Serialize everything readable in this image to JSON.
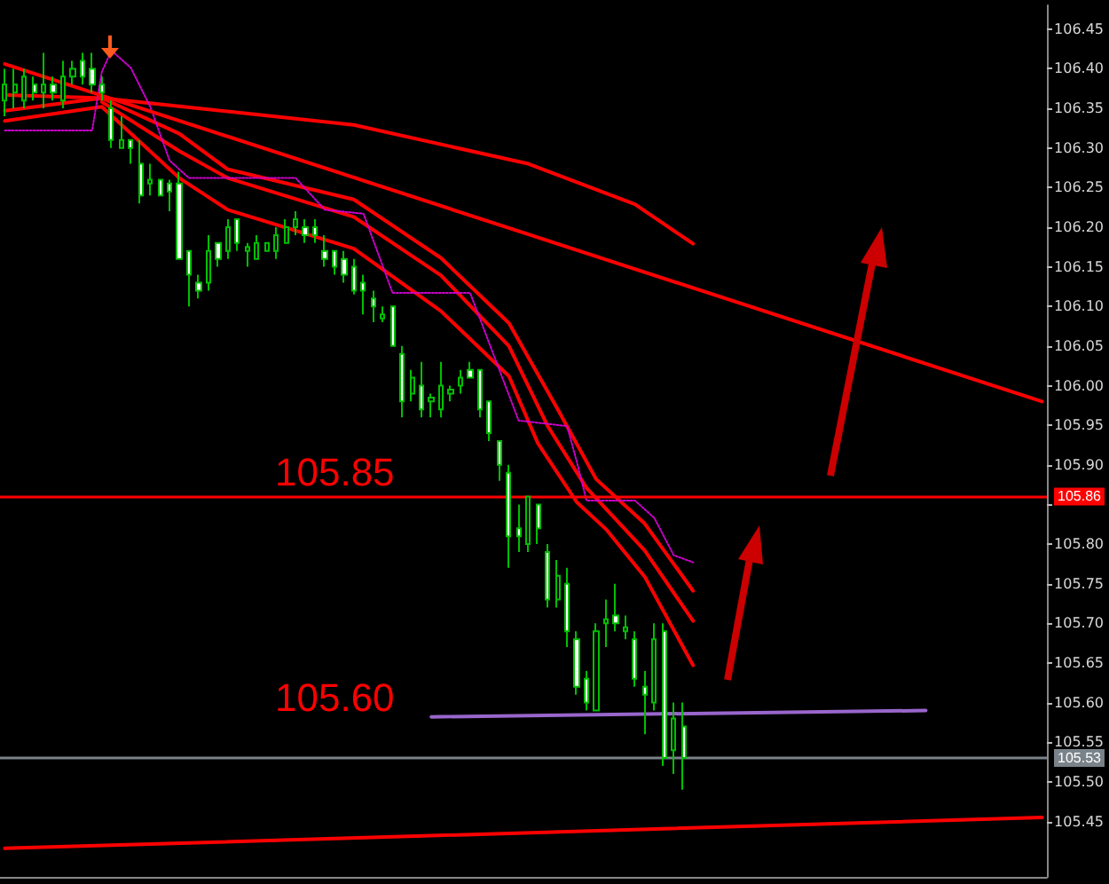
{
  "chart_data": {
    "type": "candlestick",
    "categories": [
      null,
      null,
      null,
      null,
      null,
      null,
      null,
      null,
      null,
      null,
      null,
      null,
      null,
      null,
      null,
      null,
      null,
      null,
      null,
      null,
      null,
      null,
      null,
      null,
      null,
      null,
      null,
      null,
      null,
      null,
      null,
      null,
      null,
      null,
      null,
      null,
      null,
      null,
      null,
      null,
      null,
      null,
      null,
      null,
      null,
      null,
      null,
      null,
      null,
      null,
      null,
      null,
      null,
      null,
      null,
      null,
      null,
      null,
      null,
      null,
      null,
      null,
      null,
      null,
      null,
      null,
      null,
      null,
      null,
      null,
      null,
      null,
      null,
      null,
      null,
      null,
      null,
      null,
      null,
      null,
      null,
      null,
      null,
      null,
      null,
      null,
      null,
      null,
      null,
      null,
      null,
      null,
      null,
      null,
      null,
      null,
      null,
      null,
      null,
      null,
      null,
      null,
      null,
      null,
      null,
      null,
      null,
      null
    ],
    "series": [
      {
        "color": "#00c000",
        "ohlc": [
          [
            106.36,
            106.4,
            106.34,
            106.38
          ],
          [
            106.37,
            106.4,
            106.35,
            106.38
          ],
          [
            106.36,
            106.4,
            106.35,
            106.39
          ],
          [
            106.38,
            106.39,
            106.36,
            106.37
          ],
          [
            106.37,
            106.42,
            106.35,
            106.38
          ],
          [
            106.38,
            106.39,
            106.36,
            106.37
          ],
          [
            106.36,
            106.41,
            106.35,
            106.39
          ],
          [
            106.39,
            106.41,
            106.38,
            106.4
          ],
          [
            106.41,
            106.42,
            106.38,
            106.39
          ],
          [
            106.4,
            106.42,
            106.37,
            106.38
          ],
          [
            106.38,
            106.39,
            106.36,
            106.37
          ],
          [
            106.35,
            106.36,
            106.3,
            106.31
          ],
          [
            106.3,
            106.34,
            106.3,
            106.31
          ],
          [
            106.31,
            106.31,
            106.28,
            106.3
          ],
          [
            106.28,
            106.31,
            106.23,
            106.24
          ],
          [
            106.255,
            106.28,
            106.24,
            106.26
          ],
          [
            106.26,
            106.26,
            106.24,
            106.24
          ],
          [
            106.255,
            106.26,
            106.22,
            106.245
          ],
          [
            106.255,
            106.27,
            106.16,
            106.16
          ],
          [
            106.17,
            106.17,
            106.1,
            106.14
          ],
          [
            106.13,
            106.14,
            106.11,
            106.12
          ],
          [
            106.13,
            106.19,
            106.12,
            106.17
          ],
          [
            106.18,
            106.18,
            106.15,
            106.16
          ],
          [
            106.17,
            106.21,
            106.16,
            106.2
          ],
          [
            106.21,
            106.21,
            106.17,
            106.18
          ],
          [
            106.17,
            106.18,
            106.15,
            106.175
          ],
          [
            106.16,
            106.19,
            106.16,
            106.18
          ],
          [
            106.17,
            106.18,
            106.17,
            106.18
          ],
          [
            106.17,
            106.2,
            106.16,
            106.19
          ],
          [
            106.18,
            106.21,
            106.18,
            106.2
          ],
          [
            106.2,
            106.22,
            106.19,
            106.21
          ],
          [
            106.2,
            106.21,
            106.18,
            106.19
          ],
          [
            106.2,
            106.21,
            106.18,
            106.19
          ],
          [
            106.17,
            106.19,
            106.15,
            106.16
          ],
          [
            106.17,
            106.17,
            106.14,
            106.15
          ],
          [
            106.16,
            106.17,
            106.13,
            106.14
          ],
          [
            106.15,
            106.16,
            106.115,
            106.12
          ],
          [
            106.13,
            106.14,
            106.09,
            106.12
          ],
          [
            106.11,
            106.12,
            106.08,
            106.1
          ],
          [
            106.085,
            106.1,
            106.08,
            106.09
          ],
          [
            106.1,
            106.1,
            106.05,
            106.05
          ],
          [
            106.04,
            106.05,
            105.96,
            105.98
          ],
          [
            105.99,
            106.02,
            105.98,
            106.01
          ],
          [
            106.0,
            106.03,
            105.96,
            105.97
          ],
          [
            105.98,
            105.99,
            105.96,
            105.985
          ],
          [
            105.97,
            106.03,
            105.96,
            106.0
          ],
          [
            105.99,
            106.0,
            105.98,
            105.995
          ],
          [
            106.0,
            106.02,
            105.99,
            106.01
          ],
          [
            106.02,
            106.03,
            106.01,
            106.01
          ],
          [
            106.02,
            106.02,
            105.96,
            105.97
          ],
          [
            105.98,
            105.98,
            105.93,
            105.94
          ],
          [
            105.93,
            105.93,
            105.88,
            105.9
          ],
          [
            105.89,
            105.9,
            105.77,
            105.81
          ],
          [
            105.82,
            105.85,
            105.79,
            105.81
          ],
          [
            105.8,
            105.86,
            105.79,
            105.86
          ],
          [
            105.85,
            105.85,
            105.8,
            105.82
          ],
          [
            105.79,
            105.8,
            105.72,
            105.73
          ],
          [
            105.73,
            105.78,
            105.72,
            105.76
          ],
          [
            105.75,
            105.77,
            105.67,
            105.69
          ],
          [
            105.68,
            105.69,
            105.61,
            105.62
          ],
          [
            105.63,
            105.64,
            105.59,
            105.6
          ],
          [
            105.59,
            105.7,
            105.59,
            105.69
          ],
          [
            105.7,
            105.73,
            105.67,
            105.705
          ],
          [
            105.71,
            105.75,
            105.69,
            105.7
          ],
          [
            105.69,
            105.71,
            105.68,
            105.695
          ],
          [
            105.68,
            105.69,
            105.62,
            105.63
          ],
          [
            105.62,
            105.64,
            105.56,
            105.61
          ],
          [
            105.6,
            105.7,
            105.59,
            105.68
          ],
          [
            105.69,
            105.7,
            105.52,
            105.53
          ],
          [
            105.54,
            105.6,
            105.51,
            105.58
          ],
          [
            105.57,
            105.6,
            105.49,
            105.53
          ],
          null,
          null,
          null,
          null,
          null,
          null,
          null,
          null,
          null,
          null,
          null,
          null,
          null,
          null,
          null,
          null,
          null,
          null,
          null,
          null,
          null,
          null,
          null,
          null,
          null,
          null,
          null,
          null,
          null,
          null,
          null,
          null,
          null,
          null,
          null,
          null,
          null
        ]
      },
      {
        "type": "line",
        "color": "#ff0000",
        "line_style": "solid",
        "values": [
          106.367,
          null,
          null,
          null,
          null,
          null,
          null,
          null,
          null,
          null,
          106.363,
          null,
          null,
          null,
          null,
          null,
          null,
          null,
          null,
          null,
          null,
          null,
          null,
          null,
          null,
          null,
          null,
          null,
          null,
          null,
          null,
          null,
          null,
          null,
          null,
          null,
          106.329,
          null,
          null,
          null,
          null,
          null,
          null,
          null,
          null,
          null,
          null,
          null,
          null,
          null,
          null,
          null,
          null,
          null,
          106.28,
          null,
          null,
          null,
          null,
          null,
          null,
          null,
          null,
          null,
          null,
          106.229,
          null,
          null,
          null,
          null,
          null,
          106.179,
          null,
          null,
          null,
          null,
          null,
          null,
          null,
          null,
          null,
          null,
          null,
          null,
          null,
          null,
          null,
          null,
          null,
          null,
          null,
          null,
          null,
          null,
          null,
          null,
          null,
          null,
          null,
          null,
          null,
          null,
          null,
          null,
          null,
          null,
          null,
          null
        ]
      },
      {
        "type": "line",
        "color": "#ff0000",
        "line_style": "solid",
        "values": [
          106.347,
          null,
          null,
          null,
          null,
          null,
          null,
          null,
          null,
          null,
          106.363,
          null,
          null,
          null,
          null,
          null,
          null,
          null,
          106.318,
          null,
          null,
          null,
          null,
          106.273,
          null,
          null,
          null,
          null,
          null,
          null,
          null,
          null,
          null,
          null,
          null,
          null,
          106.235,
          null,
          null,
          null,
          null,
          null,
          null,
          null,
          null,
          106.161,
          null,
          null,
          null,
          null,
          null,
          null,
          106.079,
          null,
          null,
          null,
          null,
          105.971,
          null,
          null,
          null,
          105.882,
          null,
          null,
          null,
          null,
          105.826,
          null,
          null,
          null,
          null,
          105.741,
          null,
          null,
          null,
          null,
          null,
          null,
          null,
          null,
          null,
          null,
          null,
          null,
          null,
          null,
          null,
          null,
          null,
          null,
          null,
          null,
          null,
          null,
          null,
          null,
          null,
          null,
          null,
          null,
          null,
          null,
          null,
          null,
          null,
          null,
          null,
          null
        ]
      },
      {
        "type": "line",
        "color": "#ff0000",
        "line_style": "solid",
        "values": [
          null,
          null,
          null,
          null,
          null,
          null,
          null,
          null,
          null,
          null,
          106.358,
          null,
          null,
          null,
          null,
          null,
          null,
          null,
          106.296,
          null,
          null,
          null,
          null,
          106.262,
          null,
          null,
          null,
          null,
          null,
          null,
          null,
          null,
          null,
          null,
          null,
          null,
          106.213,
          null,
          null,
          null,
          null,
          null,
          null,
          null,
          null,
          106.139,
          null,
          null,
          null,
          null,
          null,
          null,
          106.05,
          null,
          null,
          null,
          105.949,
          null,
          null,
          null,
          105.871,
          null,
          null,
          null,
          null,
          null,
          105.792,
          null,
          null,
          null,
          null,
          105.703,
          null,
          null,
          null,
          null,
          null,
          null,
          null,
          null,
          null,
          null,
          null,
          null,
          null,
          null,
          null,
          null,
          null,
          null,
          null,
          null,
          null,
          null,
          null,
          null,
          null,
          null,
          null,
          null,
          null,
          null,
          null,
          null,
          null,
          null,
          null,
          null
        ]
      },
      {
        "type": "line",
        "color": "#ff0000",
        "line_style": "solid",
        "values": [
          106.334,
          null,
          null,
          null,
          null,
          null,
          null,
          null,
          null,
          null,
          106.352,
          null,
          null,
          null,
          null,
          null,
          null,
          null,
          106.262,
          null,
          null,
          null,
          null,
          106.222,
          null,
          null,
          null,
          null,
          null,
          null,
          null,
          null,
          null,
          null,
          null,
          null,
          106.173,
          null,
          null,
          null,
          null,
          null,
          null,
          null,
          null,
          106.094,
          null,
          null,
          null,
          null,
          null,
          null,
          106.012,
          null,
          null,
          105.927,
          null,
          null,
          null,
          105.853,
          null,
          null,
          105.819,
          null,
          null,
          null,
          105.759,
          null,
          null,
          null,
          null,
          105.647,
          null,
          null,
          null,
          null,
          null,
          null,
          null,
          null,
          null,
          null,
          null,
          null,
          null,
          null,
          null,
          null,
          null,
          null,
          null,
          null,
          null,
          null,
          null,
          null,
          null,
          null,
          null,
          null,
          null,
          null,
          null,
          null,
          null,
          null,
          null,
          null
        ]
      },
      {
        "type": "line",
        "color": "#cc00cc",
        "line_style": "dotted",
        "values": [
          106.322,
          null,
          null,
          null,
          null,
          null,
          null,
          null,
          null,
          106.322,
          106.396,
          106.423,
          null,
          106.401,
          null,
          106.352,
          null,
          106.284,
          null,
          106.262,
          null,
          null,
          null,
          null,
          null,
          null,
          null,
          null,
          null,
          null,
          106.262,
          null,
          null,
          106.222,
          null,
          null,
          null,
          106.217,
          null,
          null,
          106.117,
          null,
          null,
          null,
          null,
          null,
          null,
          null,
          106.117,
          null,
          null,
          null,
          null,
          105.956,
          null,
          null,
          null,
          null,
          105.949,
          105.904,
          105.855,
          null,
          null,
          null,
          null,
          105.855,
          null,
          105.833,
          null,
          105.786,
          null,
          105.777,
          null,
          null,
          null,
          null,
          null,
          null,
          null,
          null,
          null,
          null,
          null,
          null,
          null,
          null,
          null,
          null,
          null,
          null,
          null,
          null,
          null,
          null,
          null,
          null,
          null,
          null,
          null,
          null,
          null,
          null,
          null,
          null,
          null,
          null,
          null,
          null
        ]
      },
      {
        "type": "line",
        "color": "#ff0000",
        "line_style": "solid",
        "values": [
          106.406,
          null,
          null,
          null,
          null,
          null,
          null,
          null,
          null,
          null,
          null,
          null,
          null,
          null,
          null,
          null,
          null,
          null,
          null,
          null,
          null,
          null,
          null,
          null,
          null,
          null,
          null,
          null,
          null,
          null,
          null,
          null,
          null,
          null,
          null,
          null,
          null,
          null,
          null,
          null,
          null,
          null,
          null,
          null,
          null,
          null,
          null,
          null,
          null,
          null,
          null,
          null,
          null,
          null,
          null,
          null,
          null,
          null,
          null,
          null,
          null,
          null,
          null,
          null,
          null,
          null,
          null,
          null,
          null,
          null,
          null,
          null,
          null,
          null,
          null,
          null,
          null,
          null,
          null,
          null,
          null,
          null,
          null,
          null,
          null,
          null,
          null,
          null,
          null,
          null,
          null,
          null,
          null,
          null,
          null,
          null,
          null,
          null,
          null,
          null,
          null,
          null,
          null,
          null,
          null,
          null,
          null,
          105.98
        ]
      },
      {
        "type": "line",
        "color": "#ff0000",
        "line_style": "solid",
        "values": [
          105.416,
          null,
          null,
          null,
          null,
          null,
          null,
          null,
          null,
          null,
          null,
          null,
          null,
          null,
          null,
          null,
          null,
          null,
          null,
          null,
          null,
          null,
          null,
          null,
          null,
          null,
          null,
          null,
          null,
          null,
          null,
          null,
          null,
          null,
          null,
          null,
          null,
          null,
          null,
          null,
          null,
          null,
          null,
          null,
          null,
          null,
          null,
          null,
          null,
          null,
          null,
          null,
          null,
          null,
          null,
          null,
          null,
          null,
          null,
          null,
          null,
          null,
          null,
          null,
          null,
          null,
          null,
          null,
          null,
          null,
          null,
          null,
          null,
          null,
          null,
          null,
          null,
          null,
          null,
          null,
          null,
          null,
          null,
          null,
          null,
          null,
          null,
          null,
          null,
          null,
          null,
          null,
          null,
          null,
          null,
          null,
          null,
          null,
          null,
          null,
          null,
          null,
          null,
          null,
          null,
          null,
          null,
          105.455
        ]
      },
      {
        "type": "line",
        "color": "#9966cc",
        "line_style": "solid",
        "values": [
          null,
          null,
          null,
          null,
          null,
          null,
          null,
          null,
          null,
          null,
          null,
          null,
          null,
          null,
          null,
          null,
          null,
          null,
          null,
          null,
          null,
          null,
          null,
          null,
          null,
          null,
          null,
          null,
          null,
          null,
          null,
          null,
          null,
          null,
          null,
          null,
          null,
          null,
          null,
          null,
          null,
          null,
          null,
          null,
          105.582,
          null,
          null,
          null,
          null,
          null,
          null,
          null,
          null,
          null,
          null,
          null,
          null,
          null,
          null,
          null,
          null,
          null,
          null,
          null,
          null,
          null,
          null,
          null,
          null,
          null,
          null,
          null,
          null,
          null,
          null,
          null,
          null,
          null,
          null,
          null,
          null,
          null,
          null,
          null,
          null,
          null,
          null,
          null,
          null,
          null,
          null,
          null,
          null,
          null,
          null,
          105.59,
          null,
          null,
          null,
          null,
          null,
          null,
          null,
          null,
          null,
          null,
          null,
          null
        ]
      }
    ],
    "ylim": [
      105.38,
      106.48
    ],
    "yticks": [
      {
        "value": 105.5,
        "label": "105.50"
      },
      105.45,
      105.55,
      {
        "value": 105.6,
        "label": "105.60"
      },
      105.65,
      {
        "value": 105.7,
        "label": "105.70"
      },
      105.75,
      {
        "value": 105.8,
        "label": "105.80"
      },
      {
        "value": 105.85,
        "label": null
      },
      {
        "value": 105.9,
        "label": "105.90"
      },
      105.95,
      {
        "value": 106,
        "label": "106.00"
      },
      106.05,
      {
        "value": 106.1,
        "label": "106.10"
      },
      106.15,
      {
        "value": 106.2,
        "label": "106.20"
      },
      106.25,
      {
        "value": 106.3,
        "label": "106.30"
      },
      106.35,
      {
        "value": 106.4,
        "label": "106.40"
      },
      106.45
    ],
    "ref_lines": [
      {
        "axis": "y",
        "value": 105.86,
        "label": "105.86",
        "color": "#ff0000"
      },
      {
        "axis": "y",
        "value": 105.53,
        "label": "105.53",
        "color": "#7a828a"
      }
    ],
    "annotations": [
      "105.85",
      "105.60"
    ],
    "grid": false,
    "tick_labels": "y"
  }
}
